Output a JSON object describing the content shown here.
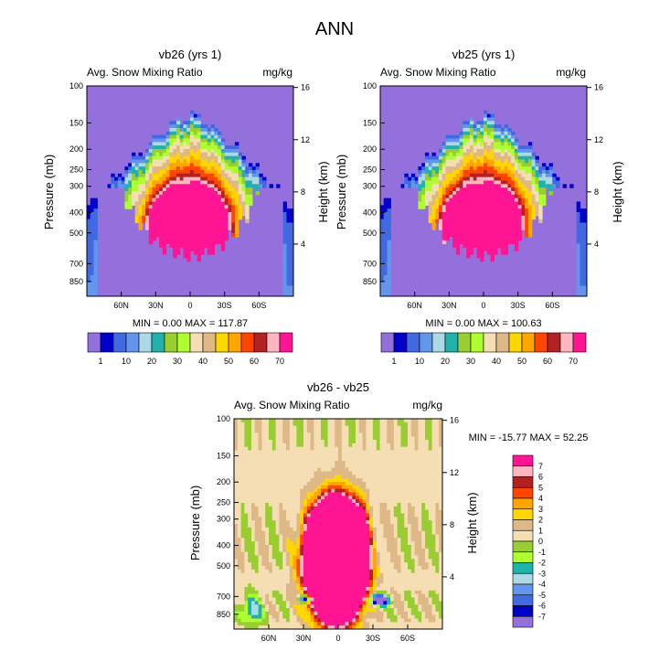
{
  "figure_title": "ANN",
  "chart_data": [
    {
      "type": "heatmap",
      "id": "vb26",
      "title": "vb26 (yrs 1)",
      "variable": "Avg. Snow Mixing Ratio",
      "units": "mg/kg",
      "ylabel": "Pressure (mb)",
      "ylabel_right": "Height (km)",
      "xticks": [
        "60N",
        "30N",
        "0",
        "30S",
        "60S"
      ],
      "xtick_lat": [
        60,
        30,
        0,
        -30,
        -60
      ],
      "xlim": [
        90,
        -90
      ],
      "yticks_pressure": [
        "100",
        "150",
        "200",
        "250",
        "300",
        "400",
        "500",
        "700",
        "850"
      ],
      "yticks_height": [
        "16",
        "12",
        "8",
        "4"
      ],
      "ylim_pressure": [
        100,
        1000
      ],
      "stats": "MIN =   0.00  MAX = 117.87",
      "colorbar_labels": [
        "1",
        "10",
        "20",
        "30",
        "40",
        "50",
        "60",
        "70"
      ],
      "colorbar_colors": [
        "#9370db",
        "#0000cd",
        "#4169e1",
        "#6495ed",
        "#add8e6",
        "#20b2aa",
        "#9acd32",
        "#adff2f",
        "#f5deb3",
        "#deb887",
        "#ffd700",
        "#ffa500",
        "#ff4500",
        "#b22222",
        "#ffb6c1",
        "#ff1493"
      ],
      "peak_max": 117.87
    },
    {
      "type": "heatmap",
      "id": "vb25",
      "title": "vb25 (yrs 1)",
      "variable": "Avg. Snow Mixing Ratio",
      "units": "mg/kg",
      "ylabel": "Pressure (mb)",
      "ylabel_right": "Height (km)",
      "xticks": [
        "60N",
        "30N",
        "0",
        "30S",
        "60S"
      ],
      "xtick_lat": [
        60,
        30,
        0,
        -30,
        -60
      ],
      "xlim": [
        90,
        -90
      ],
      "yticks_pressure": [
        "100",
        "150",
        "200",
        "250",
        "300",
        "400",
        "500",
        "700",
        "850"
      ],
      "yticks_height": [
        "16",
        "12",
        "8",
        "4"
      ],
      "ylim_pressure": [
        100,
        1000
      ],
      "stats": "MIN =   0.00  MAX = 100.63",
      "colorbar_labels": [
        "1",
        "10",
        "20",
        "30",
        "40",
        "50",
        "60",
        "70"
      ],
      "colorbar_colors": [
        "#9370db",
        "#0000cd",
        "#4169e1",
        "#6495ed",
        "#add8e6",
        "#20b2aa",
        "#9acd32",
        "#adff2f",
        "#f5deb3",
        "#deb887",
        "#ffd700",
        "#ffa500",
        "#ff4500",
        "#b22222",
        "#ffb6c1",
        "#ff1493"
      ],
      "peak_max": 100.63
    },
    {
      "type": "heatmap",
      "id": "diff",
      "title": "vb26 - vb25",
      "variable": "Avg. Snow Mixing Ratio",
      "units": "mg/kg",
      "ylabel": "Pressure (mb)",
      "ylabel_right": "Height (km)",
      "xticks": [
        "60N",
        "30N",
        "0",
        "30S",
        "60S"
      ],
      "xtick_lat": [
        60,
        30,
        0,
        -30,
        -60
      ],
      "xlim": [
        90,
        -90
      ],
      "yticks_pressure": [
        "100",
        "150",
        "200",
        "250",
        "300",
        "400",
        "500",
        "700",
        "850"
      ],
      "yticks_height": [
        "16",
        "12",
        "8",
        "4"
      ],
      "ylim_pressure": [
        100,
        1000
      ],
      "stats": "MIN = -15.77  MAX =  52.25",
      "colorbar_labels": [
        "7",
        "6",
        "5",
        "4",
        "3",
        "2",
        "1",
        "0",
        "-1",
        "-2",
        "-3",
        "-4",
        "-5",
        "-6",
        "-7"
      ],
      "colorbar_colors": [
        "#ff1493",
        "#ffb6c1",
        "#b22222",
        "#ff4500",
        "#ffa500",
        "#ffd700",
        "#deb887",
        "#f5deb3",
        "#9acd32",
        "#adff2f",
        "#20b2aa",
        "#add8e6",
        "#6495ed",
        "#4169e1",
        "#0000cd",
        "#9370db"
      ]
    }
  ]
}
